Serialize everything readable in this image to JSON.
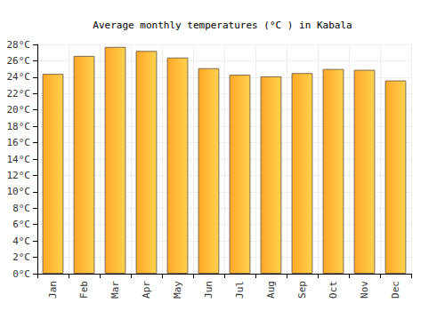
{
  "chart_data": {
    "type": "bar",
    "title": "Average monthly temperatures (°C ) in Kabala",
    "categories": [
      "Jan",
      "Feb",
      "Mar",
      "Apr",
      "May",
      "Jun",
      "Jul",
      "Aug",
      "Sep",
      "Oct",
      "Nov",
      "Dec"
    ],
    "values": [
      24.4,
      26.6,
      27.7,
      27.2,
      26.4,
      25.1,
      24.3,
      24.1,
      24.5,
      25.0,
      24.9,
      23.6
    ],
    "color": "#ffa726",
    "ylim": [
      0,
      28
    ],
    "yticks": [
      {
        "value": 0,
        "label": "0°C"
      },
      {
        "value": 2,
        "label": "2°C"
      },
      {
        "value": 4,
        "label": "4°C"
      },
      {
        "value": 6,
        "label": "6°C"
      },
      {
        "value": 8,
        "label": "8°C"
      },
      {
        "value": 10,
        "label": "10°C"
      },
      {
        "value": 12,
        "label": "12°C"
      },
      {
        "value": 14,
        "label": "14°C"
      },
      {
        "value": 16,
        "label": "16°C"
      },
      {
        "value": 18,
        "label": "18°C"
      },
      {
        "value": 20,
        "label": "20°C"
      },
      {
        "value": 22,
        "label": "22°C"
      },
      {
        "value": 24,
        "label": "24°C"
      },
      {
        "value": 26,
        "label": "26°C"
      },
      {
        "value": 28,
        "label": "28°C"
      }
    ],
    "grid": true
  }
}
